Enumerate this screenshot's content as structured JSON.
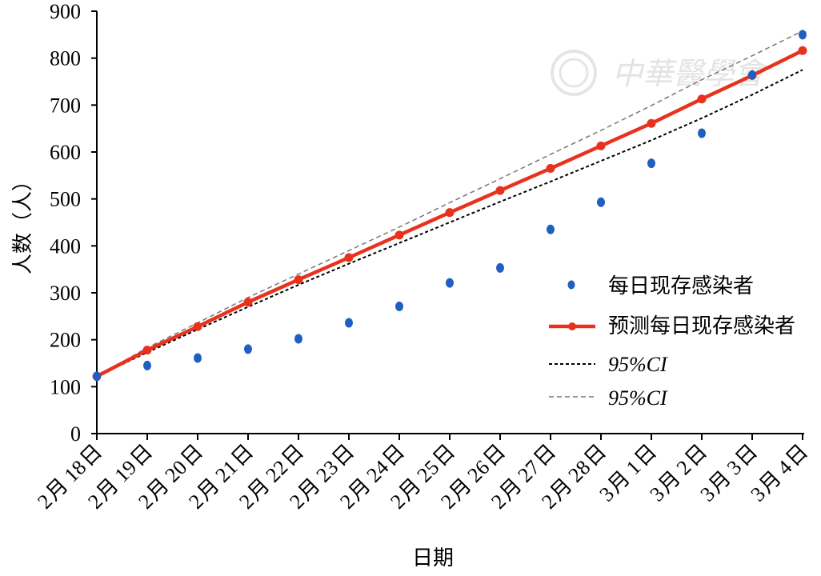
{
  "chart_data": {
    "type": "line",
    "xlabel": "日期",
    "ylabel": "人数（人）",
    "ylim": [
      0,
      900
    ],
    "yticks": [
      0,
      100,
      200,
      300,
      400,
      500,
      600,
      700,
      800,
      900
    ],
    "categories": [
      "2月18日",
      "2月19日",
      "2月20日",
      "2月21日",
      "2月22日",
      "2月23日",
      "2月24日",
      "2月25日",
      "2月26日",
      "2月27日",
      "2月28日",
      "3月1日",
      "3月2日",
      "3月3日",
      "3月4日"
    ],
    "category_parts": [
      [
        "2",
        "月",
        "18",
        "日"
      ],
      [
        "2",
        "月",
        "19",
        "日"
      ],
      [
        "2",
        "月",
        "20",
        "日"
      ],
      [
        "2",
        "月",
        "21",
        "日"
      ],
      [
        "2",
        "月",
        "22",
        "日"
      ],
      [
        "2",
        "月",
        "23",
        "日"
      ],
      [
        "2",
        "月",
        "24",
        "日"
      ],
      [
        "2",
        "月",
        "25",
        "日"
      ],
      [
        "2",
        "月",
        "26",
        "日"
      ],
      [
        "2",
        "月",
        "27",
        "日"
      ],
      [
        "2",
        "月",
        "28",
        "日"
      ],
      [
        "3",
        "月",
        "1",
        "日"
      ],
      [
        "3",
        "月",
        "2",
        "日"
      ],
      [
        "3",
        "月",
        "3",
        "日"
      ],
      [
        "3",
        "月",
        "4",
        "日"
      ]
    ],
    "series": [
      {
        "name": "每日现存感染者",
        "kind": "scatter",
        "color": "#1f5fc0",
        "values": [
          122,
          145,
          161,
          180,
          202,
          236,
          271,
          321,
          353,
          435,
          493,
          576,
          640,
          764,
          850
        ]
      },
      {
        "name": "预测每日现存感染者",
        "kind": "line",
        "color": "#e8321e",
        "values": [
          122,
          178,
          228,
          280,
          328,
          375,
          423,
          471,
          518,
          565,
          613,
          661,
          713,
          763,
          816
        ]
      },
      {
        "name": "95%CI",
        "kind": "dashed",
        "color": "#000000",
        "values": [
          122,
          173,
          222,
          270,
          317,
          362,
          406,
          450,
          494,
          537,
          581,
          625,
          672,
          722,
          775
        ]
      },
      {
        "name": "95%CI",
        "kind": "dashed",
        "color": "#777777",
        "values": [
          122,
          183,
          236,
          290,
          340,
          390,
          440,
          492,
          543,
          595,
          646,
          699,
          754,
          805,
          858
        ]
      }
    ],
    "legend_position": "right",
    "grid": false
  },
  "watermark": "中華醫學會"
}
